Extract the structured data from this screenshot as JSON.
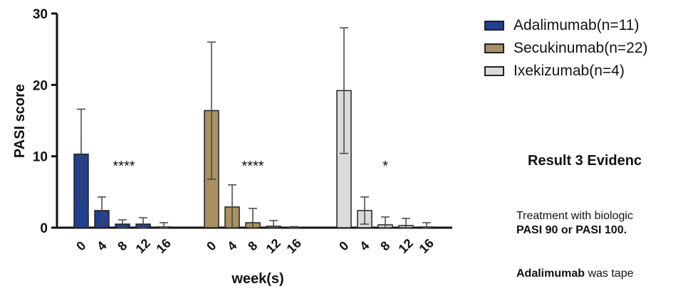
{
  "chart_data": {
    "type": "bar",
    "ylabel": "PASI score",
    "xlabel": "week(s)",
    "ylim": [
      0,
      30
    ],
    "yticks": [
      0,
      10,
      20,
      30
    ],
    "categories": [
      "0",
      "4",
      "8",
      "12",
      "16"
    ],
    "series": [
      {
        "name": "Adalimumab(n=11)",
        "color": "#23408e",
        "values": [
          10.3,
          2.4,
          0.5,
          0.5,
          0.1
        ],
        "errors": [
          6.3,
          1.9,
          0.6,
          0.9,
          0.6
        ],
        "significance": "****"
      },
      {
        "name": "Secukinumab(n=22)",
        "color": "#a89060",
        "values": [
          16.4,
          2.9,
          0.7,
          0.2,
          0.05
        ],
        "errors": [
          9.6,
          3.1,
          2.0,
          0.8,
          0.1
        ],
        "significance": "****"
      },
      {
        "name": "Ixekizumab(n=4)",
        "color": "#dadada",
        "values": [
          19.2,
          2.4,
          0.4,
          0.3,
          0.1
        ],
        "errors": [
          8.8,
          1.9,
          1.1,
          1.0,
          0.6
        ],
        "significance": "*"
      }
    ],
    "legend_position": "right",
    "grid": false
  },
  "side_text": {
    "result_title": "Result 3  Evidenc",
    "para1_line1": "Treatment with biologic",
    "para1_line2": "PASI 90 or PASI 100.",
    "para2_bold": "Adalimumab",
    "para2_rest": " was tape"
  }
}
